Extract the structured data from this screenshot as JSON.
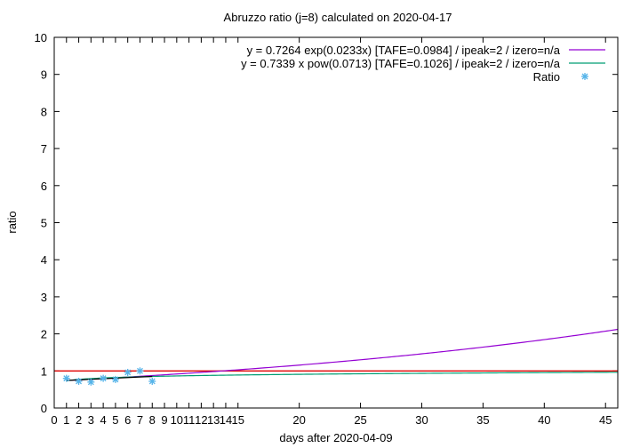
{
  "chart_data": {
    "type": "line",
    "title": "Abruzzo ratio (j=8) calculated on 2020-04-17",
    "xlabel": "days after 2020-04-09",
    "ylabel": "ratio",
    "xlim": [
      0,
      46
    ],
    "ylim": [
      0,
      10
    ],
    "x_ticks": [
      0,
      1,
      2,
      3,
      4,
      5,
      6,
      7,
      8,
      9,
      10,
      11,
      12,
      13,
      14,
      15,
      20,
      25,
      30,
      35,
      40,
      45
    ],
    "y_ticks": [
      0,
      1,
      2,
      3,
      4,
      5,
      6,
      7,
      8,
      9,
      10
    ],
    "grid": false,
    "legend_position": "top-right",
    "colors": {
      "exp_fit": "#9400d3",
      "pow_fit": "#009e73",
      "ratio_points": "#56b4e9",
      "reference_line": "#e00000",
      "fit_overlap": "#000000"
    },
    "series": [
      {
        "name": "y = 0.7264 exp(0.0233x)  [TAFE=0.0984] / ipeak=2 / izero=n/a",
        "kind": "exp_fit",
        "a": 0.7264,
        "b": 0.0233,
        "x_range": [
          1,
          46
        ]
      },
      {
        "name": "y = 0.7339 x pow(0.0713)  [TAFE=0.1026] / ipeak=2 / izero=n/a",
        "kind": "pow_fit",
        "a": 0.7339,
        "b": 0.0713,
        "x_range": [
          1,
          46
        ]
      },
      {
        "name": "Ratio",
        "kind": "scatter",
        "x": [
          1,
          2,
          3,
          4,
          5,
          6,
          7,
          8
        ],
        "y": [
          0.8,
          0.72,
          0.7,
          0.8,
          0.77,
          0.96,
          1.0,
          0.72
        ]
      },
      {
        "kind": "reference",
        "y": 1
      }
    ]
  }
}
